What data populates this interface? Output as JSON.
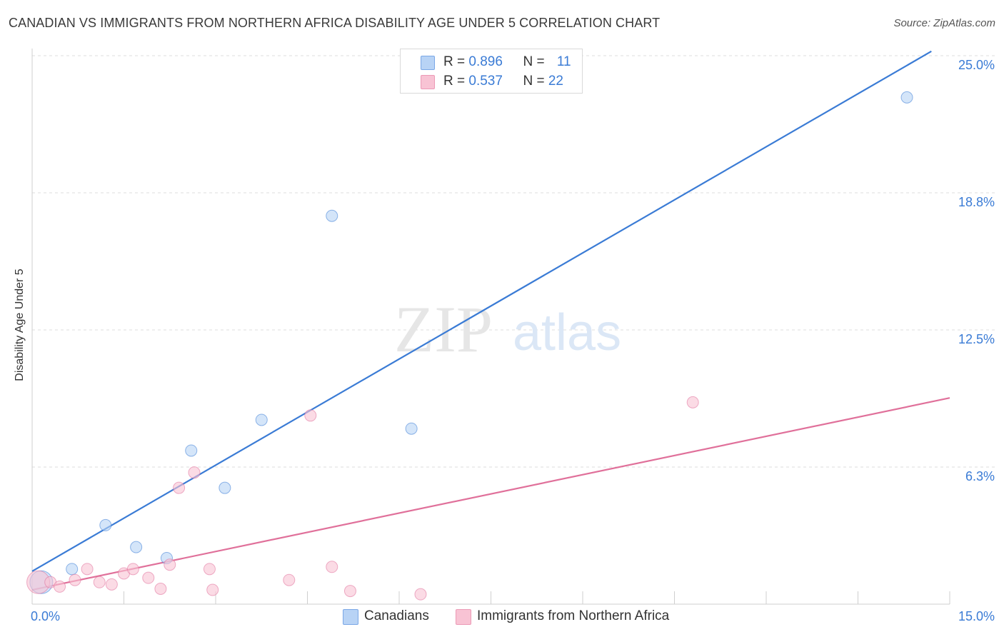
{
  "chart_data": {
    "type": "scatter",
    "title": "CANADIAN VS IMMIGRANTS FROM NORTHERN AFRICA DISABILITY AGE UNDER 5 CORRELATION CHART",
    "source": "Source: ZipAtlas.com",
    "ylabel": "Disability Age Under 5",
    "xlim": [
      0,
      15
    ],
    "ylim": [
      0,
      25
    ],
    "x_tick_labels": [
      "0.0%",
      "15.0%"
    ],
    "y_ticks": [
      {
        "value": 6.25,
        "label": "6.3%"
      },
      {
        "value": 12.5,
        "label": "12.5%"
      },
      {
        "value": 18.75,
        "label": "18.8%"
      },
      {
        "value": 25.0,
        "label": "25.0%"
      }
    ],
    "watermark": {
      "zip": "ZIP",
      "atlas": "atlas"
    },
    "legend": [
      {
        "r_label": "R = ",
        "r_value": "0.896",
        "n_label": "N = ",
        "n_value": "11"
      },
      {
        "r_label": "R = ",
        "r_value": "0.537",
        "n_label": "N = ",
        "n_value": "22"
      }
    ],
    "series": [
      {
        "name": "Canadians",
        "color": "#3a7bd5",
        "fill": "#b8d3f5",
        "points": [
          {
            "x": 0.15,
            "y": 1.0,
            "big": true
          },
          {
            "x": 0.65,
            "y": 1.6
          },
          {
            "x": 1.2,
            "y": 3.6
          },
          {
            "x": 1.7,
            "y": 2.6
          },
          {
            "x": 2.2,
            "y": 2.1
          },
          {
            "x": 2.6,
            "y": 7.0
          },
          {
            "x": 3.15,
            "y": 5.3
          },
          {
            "x": 3.75,
            "y": 8.4
          },
          {
            "x": 4.9,
            "y": 17.7
          },
          {
            "x": 6.2,
            "y": 8.0
          },
          {
            "x": 14.3,
            "y": 23.1
          }
        ],
        "trend": {
          "x0": 0.0,
          "y0": 1.5,
          "x1": 14.7,
          "y1": 25.2
        }
      },
      {
        "name": "Immigrants from Northern Africa",
        "color": "#e0709a",
        "fill": "#f8c3d4",
        "points": [
          {
            "x": 0.1,
            "y": 1.0,
            "big": true
          },
          {
            "x": 0.3,
            "y": 1.0
          },
          {
            "x": 0.45,
            "y": 0.8
          },
          {
            "x": 0.7,
            "y": 1.1
          },
          {
            "x": 0.9,
            "y": 1.6
          },
          {
            "x": 1.1,
            "y": 1.0
          },
          {
            "x": 1.3,
            "y": 0.9
          },
          {
            "x": 1.5,
            "y": 1.4
          },
          {
            "x": 1.65,
            "y": 1.6
          },
          {
            "x": 1.9,
            "y": 1.2
          },
          {
            "x": 2.1,
            "y": 0.7
          },
          {
            "x": 2.25,
            "y": 1.8
          },
          {
            "x": 2.4,
            "y": 5.3
          },
          {
            "x": 2.65,
            "y": 6.0
          },
          {
            "x": 2.9,
            "y": 1.6
          },
          {
            "x": 2.95,
            "y": 0.65
          },
          {
            "x": 4.2,
            "y": 1.1
          },
          {
            "x": 4.55,
            "y": 8.6
          },
          {
            "x": 4.9,
            "y": 1.7
          },
          {
            "x": 5.2,
            "y": 0.6
          },
          {
            "x": 6.35,
            "y": 0.45
          },
          {
            "x": 10.8,
            "y": 9.2
          }
        ],
        "trend": {
          "x0": 0.0,
          "y0": 0.65,
          "x1": 15.0,
          "y1": 9.4
        }
      }
    ]
  }
}
